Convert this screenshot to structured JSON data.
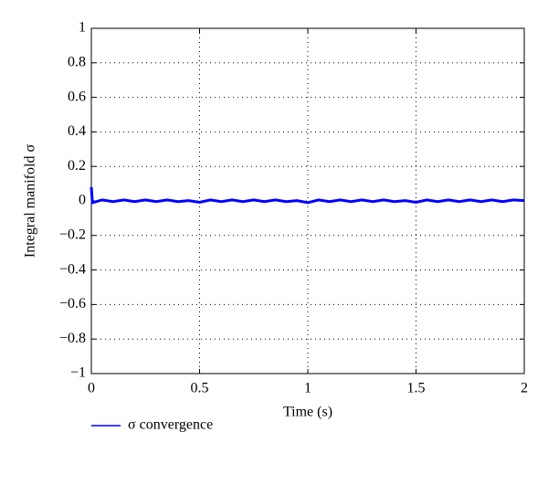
{
  "chart_data": {
    "type": "line",
    "xlabel": "Time (s)",
    "ylabel": "Integral manifold σ",
    "x": [
      0,
      0.005,
      0.05,
      0.1,
      0.15,
      0.2,
      0.25,
      0.3,
      0.35,
      0.4,
      0.45,
      0.5,
      0.55,
      0.6,
      0.65,
      0.7,
      0.75,
      0.8,
      0.85,
      0.9,
      0.95,
      1,
      1.05,
      1.1,
      1.15,
      1.2,
      1.25,
      1.3,
      1.35,
      1.4,
      1.45,
      1.5,
      1.55,
      1.6,
      1.65,
      1.7,
      1.75,
      1.8,
      1.85,
      1.9,
      1.95,
      2
    ],
    "series": [
      {
        "name": "σ convergence",
        "color": "#0000ff",
        "values": [
          0.08,
          -0.01,
          0.006,
          -0.004,
          0.006,
          -0.004,
          0.006,
          -0.004,
          0.006,
          -0.004,
          0.002,
          -0.008,
          0.006,
          -0.004,
          0.006,
          -0.004,
          0.006,
          -0.004,
          0.006,
          -0.004,
          0.002,
          -0.01,
          0.006,
          -0.004,
          0.006,
          -0.004,
          0.006,
          -0.004,
          0.006,
          -0.004,
          0.002,
          -0.008,
          0.006,
          -0.004,
          0.006,
          -0.004,
          0.006,
          -0.004,
          0.006,
          -0.004,
          0.006,
          0.002
        ]
      }
    ],
    "xlim": [
      0,
      2
    ],
    "xticks": [
      0,
      0.5,
      1,
      1.5,
      2
    ],
    "ylim": [
      -1,
      1
    ],
    "yticks": [
      {
        "value": -1,
        "label": "−1"
      },
      {
        "value": -0.8,
        "label": "−0.8"
      },
      {
        "value": -0.6,
        "label": "−0.6"
      },
      {
        "value": -0.4,
        "label": "−0.4"
      },
      {
        "value": -0.2,
        "label": "−0.2"
      },
      0,
      0.2,
      0.4,
      0.6,
      0.8,
      1
    ],
    "grid": true,
    "legend": "bottom"
  }
}
